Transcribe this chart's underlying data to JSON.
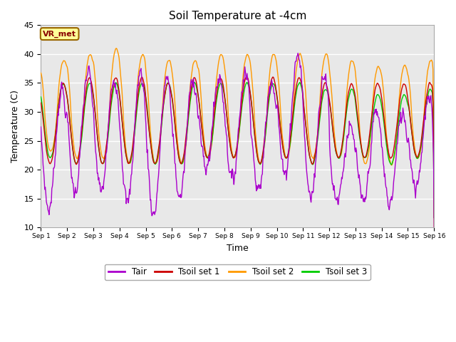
{
  "title": "Soil Temperature at -4cm",
  "xlabel": "Time",
  "ylabel": "Temperature (C)",
  "ylim": [
    10,
    45
  ],
  "yticks": [
    10,
    15,
    20,
    25,
    30,
    35,
    40,
    45
  ],
  "colors": {
    "Tair": "#aa00cc",
    "Tsoil_set1": "#cc0000",
    "Tsoil_set2": "#ff9900",
    "Tsoil_set3": "#00cc00"
  },
  "background_color": "#e8e8e8",
  "annotation_text": "VR_met",
  "annotation_bg": "#ffff99",
  "annotation_border": "#996600",
  "annotation_text_color": "#880000",
  "legend_labels": [
    "Tair",
    "Tsoil set 1",
    "Tsoil set 2",
    "Tsoil set 3"
  ],
  "xtick_labels": [
    "Sep 1",
    "Sep 2",
    "Sep 3",
    "Sep 4",
    "Sep 5",
    "Sep 6",
    "Sep 7",
    "Sep 8",
    "Sep 9",
    "Sep 10",
    "Sep 11",
    "Sep 12",
    "Sep 13",
    "Sep 14",
    "Sep 15",
    "Sep 16"
  ],
  "n_days": 15,
  "figsize": [
    6.4,
    4.8
  ],
  "dpi": 100
}
